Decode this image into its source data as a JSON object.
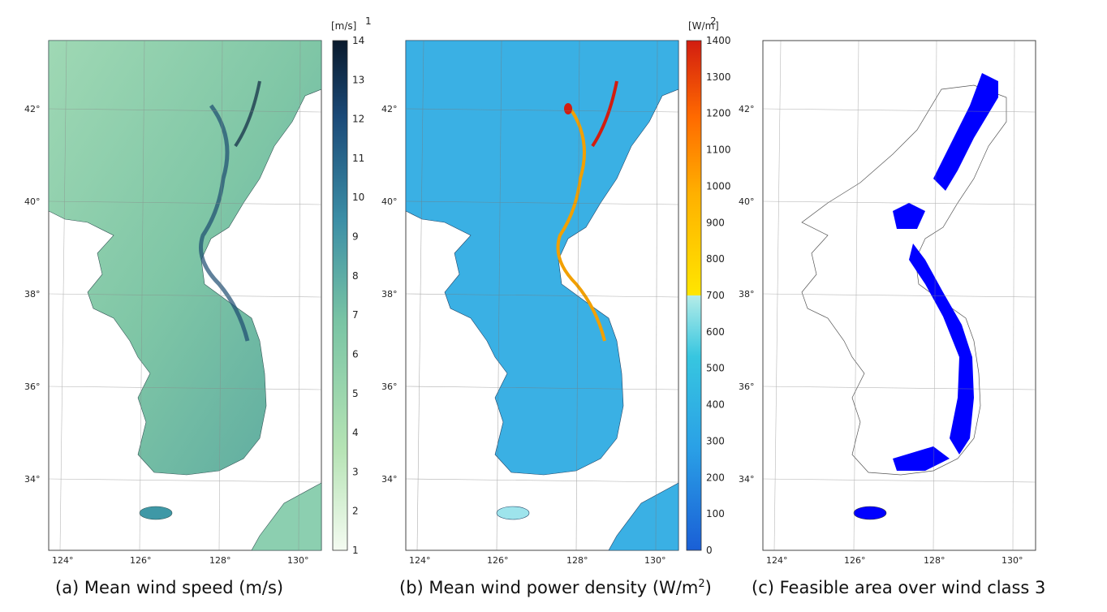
{
  "panels": [
    {
      "caption": "(a) Mean wind speed (m/s)",
      "unit": "[m/s]",
      "unit_superscript": "1",
      "colorbar_labels": [
        "14",
        "13",
        "12",
        "11",
        "10",
        "9",
        "8",
        "7",
        "6",
        "5",
        "4",
        "3",
        "2",
        "1"
      ]
    },
    {
      "caption": "(b) Mean wind power density (W/m",
      "caption_superscript": "2",
      "caption_suffix": ")",
      "unit": "[W/m",
      "unit_superscript": "2",
      "unit_suffix": "]",
      "colorbar_labels": [
        "1400",
        "1300",
        "1200",
        "1100",
        "1000",
        "900",
        "800",
        "700",
        "600",
        "500",
        "400",
        "300",
        "200",
        "100",
        "0"
      ]
    },
    {
      "caption": "(c) Feasible area over wind class 3"
    }
  ],
  "lat_labels": [
    "42°",
    "40°",
    "38°",
    "36°",
    "34°"
  ],
  "lon_labels": [
    "124°",
    "126°",
    "128°",
    "130°"
  ],
  "colors": {
    "speed_low": "#f4fbf1",
    "speed_mid": "#7fc4a2",
    "speed_high": "#0e2642",
    "power_low": "#1a6fd6",
    "power_mid": "#37c6e0",
    "power_high": "#d21d10",
    "feasible": "#0000ff"
  }
}
